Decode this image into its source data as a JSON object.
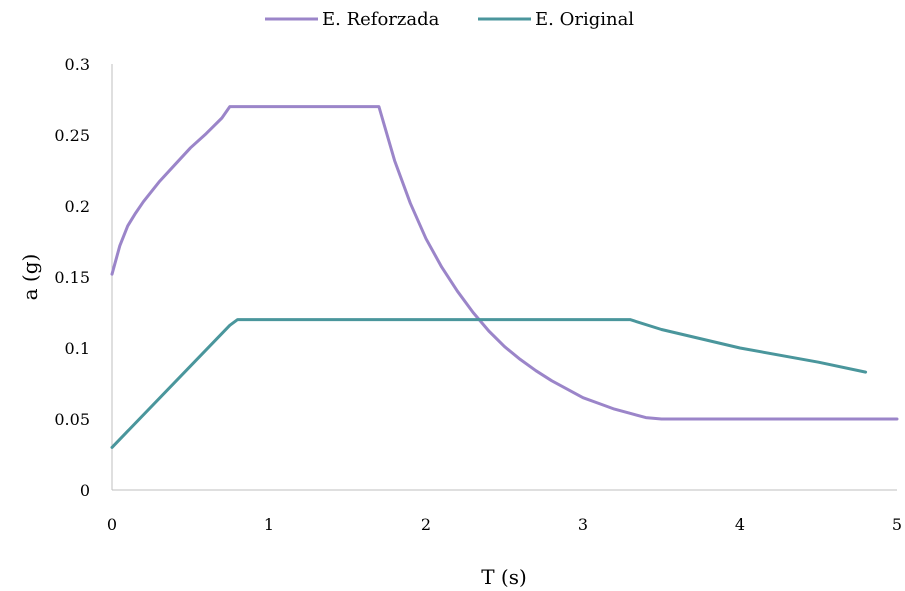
{
  "chart_data": {
    "type": "line",
    "xlabel": "T (s)",
    "ylabel": "a (g)",
    "xlim": [
      0,
      5
    ],
    "ylim": [
      0,
      0.3
    ],
    "xticks": [
      "0",
      "1",
      "2",
      "3",
      "4",
      "5"
    ],
    "yticks": [
      "0",
      "0.05",
      "0.1",
      "0.15",
      "0.2",
      "0.25",
      "0.3"
    ],
    "grid": false,
    "legend_position": "top",
    "series": [
      {
        "name": "E. Reforzada",
        "color": "#9b85c9",
        "x": [
          0,
          0.05,
          0.1,
          0.15,
          0.2,
          0.3,
          0.4,
          0.5,
          0.6,
          0.7,
          0.75,
          1.0,
          1.3,
          1.6,
          1.7,
          1.8,
          1.9,
          2.0,
          2.1,
          2.2,
          2.3,
          2.4,
          2.5,
          2.6,
          2.7,
          2.8,
          2.9,
          3.0,
          3.1,
          3.2,
          3.3,
          3.4,
          3.5,
          3.6,
          4.0,
          4.5,
          5.0
        ],
        "y": [
          0.152,
          0.172,
          0.186,
          0.195,
          0.203,
          0.217,
          0.229,
          0.241,
          0.251,
          0.262,
          0.27,
          0.27,
          0.27,
          0.27,
          0.27,
          0.232,
          0.202,
          0.177,
          0.157,
          0.14,
          0.125,
          0.112,
          0.101,
          0.092,
          0.084,
          0.077,
          0.071,
          0.065,
          0.061,
          0.057,
          0.054,
          0.051,
          0.05,
          0.05,
          0.05,
          0.05,
          0.05
        ]
      },
      {
        "name": "E. Original",
        "color": "#4a969c",
        "x": [
          0,
          0.75,
          0.8,
          0.85,
          1.0,
          2.0,
          3.0,
          3.3,
          3.5,
          4.0,
          4.5,
          4.8
        ],
        "y": [
          0.03,
          0.116,
          0.12,
          0.12,
          0.12,
          0.12,
          0.12,
          0.12,
          0.113,
          0.1,
          0.09,
          0.083
        ]
      }
    ]
  }
}
